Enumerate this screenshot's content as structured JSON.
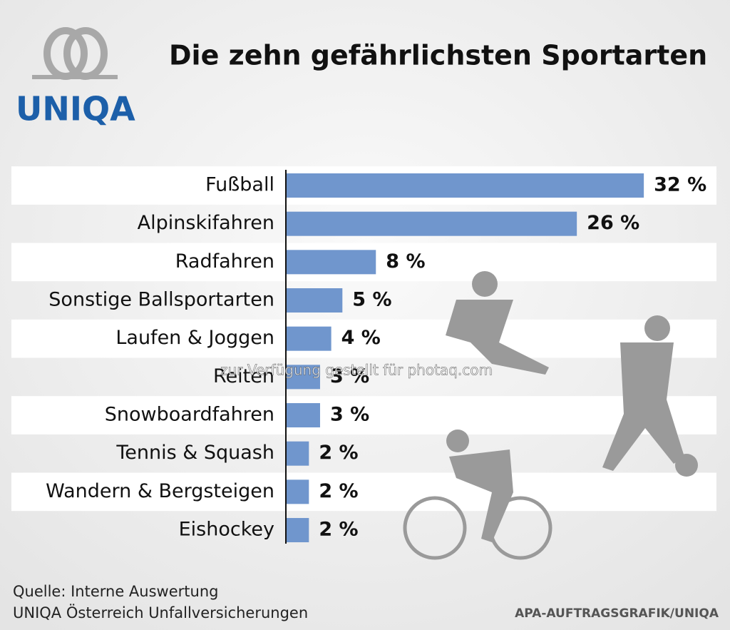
{
  "chart_data": {
    "type": "bar",
    "orientation": "horizontal",
    "title": "Die zehn gefährlichsten Sportarten",
    "logo": "UNIQA",
    "categories": [
      "Fußball",
      "Alpinskifahren",
      "Radfahren",
      "Sonstige Ballsportarten",
      "Laufen & Joggen",
      "Reiten",
      "Snowboardfahren",
      "Tennis & Squash",
      "Wandern & Bergsteigen",
      "Eishockey"
    ],
    "values": [
      32,
      26,
      8,
      5,
      4,
      3,
      3,
      2,
      2,
      2
    ],
    "value_labels": [
      "32 %",
      "26 %",
      "8 %",
      "5 %",
      "4 %",
      "3 %",
      "3 %",
      "2 %",
      "2 %",
      "2 %"
    ],
    "color": "#7096cd",
    "source": [
      "Quelle: Interne Auswertung",
      "UNIQA Österreich Unfallversicherungen"
    ],
    "credit": "APA-AUFTRAGSGRAFIK/UNIQA",
    "watermark": "zur Verfügung gestellt für photaq.com"
  }
}
